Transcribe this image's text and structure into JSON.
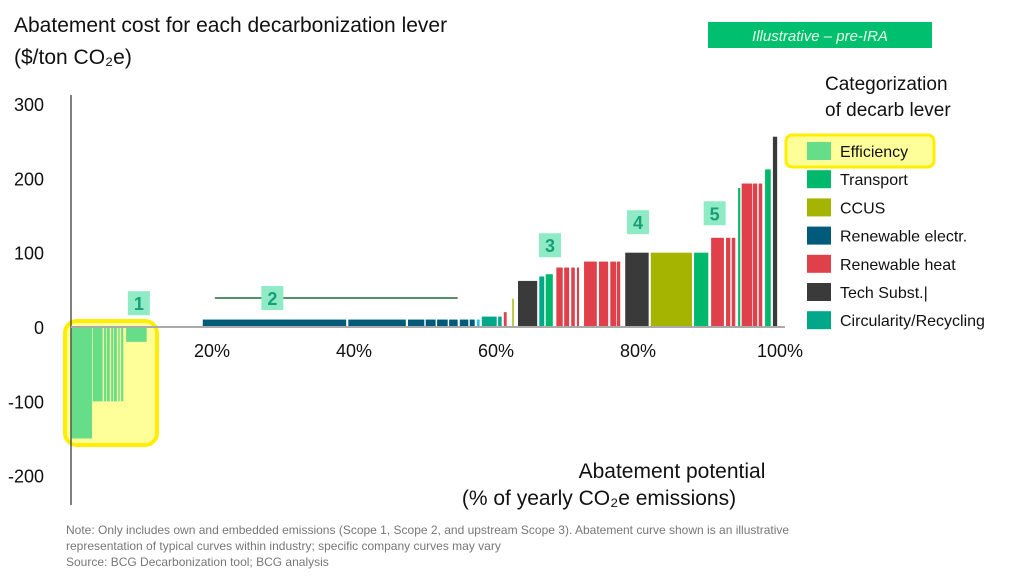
{
  "badge": "Illustrative – pre-IRA",
  "notes": {
    "line1": "Note: Only includes own and embedded emissions (Scope 1, Scope 2, and upstream Scope 3). Abatement curve shown is an illustrative",
    "line2": "representation of typical curves within industry; specific company curves may vary",
    "line3": "Source: BCG Decarbonization tool; BCG analysis"
  },
  "chart_data": {
    "type": "bar",
    "subtype": "marginal-abatement-cost-curve",
    "title": "Abatement cost for each decarbonization lever",
    "ylabel": "($/ton CO₂e)",
    "xlabel_line1": "Abatement potential",
    "xlabel_line2": "(% of yearly CO₂e emissions)",
    "xlim": [
      0,
      100
    ],
    "ylim": [
      -200,
      300
    ],
    "yticks": [
      "300",
      "200",
      "100",
      "0",
      "-100",
      "-200"
    ],
    "ytick_values": [
      300,
      200,
      100,
      0,
      -100,
      -200
    ],
    "xticks": [
      "20%",
      "40%",
      "60%",
      "80%",
      "100%"
    ],
    "xtick_values": [
      20,
      40,
      60,
      80,
      100
    ],
    "grid": false,
    "legend": {
      "title_line1": "Categorization",
      "title_line2": "of decarb lever",
      "placement": "right",
      "highlighted": "Efficiency",
      "items": [
        {
          "name": "Efficiency",
          "color": "#66dd88"
        },
        {
          "name": "Transport",
          "color": "#00b86b"
        },
        {
          "name": "CCUS",
          "color": "#a5b400"
        },
        {
          "name": "Renewable electr.",
          "color": "#005a7a"
        },
        {
          "name": "Renewable heat",
          "color": "#e0404a"
        },
        {
          "name": "Tech Subst.|",
          "color": "#3a3a3a"
        },
        {
          "name": "Circularity/Recycling",
          "color": "#00a88a"
        }
      ]
    },
    "bars": [
      {
        "x0": 0.1,
        "x1": 3.1,
        "value": -150,
        "category": "Efficiency"
      },
      {
        "x0": 3.2,
        "x1": 4.6,
        "value": -100,
        "category": "Efficiency"
      },
      {
        "x0": 4.8,
        "x1": 5.1,
        "value": -100,
        "category": "Efficiency"
      },
      {
        "x0": 5.2,
        "x1": 5.6,
        "value": -100,
        "category": "Efficiency"
      },
      {
        "x0": 5.8,
        "x1": 6.1,
        "value": -100,
        "category": "Efficiency"
      },
      {
        "x0": 6.2,
        "x1": 6.6,
        "value": -100,
        "category": "Efficiency"
      },
      {
        "x0": 6.8,
        "x1": 7.0,
        "value": -100,
        "category": "Efficiency"
      },
      {
        "x0": 7.2,
        "x1": 7.5,
        "value": -100,
        "category": "Efficiency"
      },
      {
        "x0": 7.9,
        "x1": 10.8,
        "value": -20,
        "category": "Efficiency"
      },
      {
        "x0": 18.7,
        "x1": 38.9,
        "value": 10,
        "category": "Renewable electr."
      },
      {
        "x0": 39.2,
        "x1": 47.3,
        "value": 10,
        "category": "Renewable electr."
      },
      {
        "x0": 47.6,
        "x1": 49.9,
        "value": 10,
        "category": "Renewable electr."
      },
      {
        "x0": 50.1,
        "x1": 51.5,
        "value": 10,
        "category": "Renewable electr."
      },
      {
        "x0": 51.7,
        "x1": 53.2,
        "value": 10,
        "category": "Renewable electr."
      },
      {
        "x0": 53.4,
        "x1": 54.6,
        "value": 10,
        "category": "Renewable electr."
      },
      {
        "x0": 54.9,
        "x1": 56.1,
        "value": 10,
        "category": "Renewable electr."
      },
      {
        "x0": 56.3,
        "x1": 57.0,
        "value": 10,
        "category": "Renewable electr."
      },
      {
        "x0": 57.3,
        "x1": 57.7,
        "value": 10,
        "category": "Circularity/Recycling",
        "color": "#2ec4e6"
      },
      {
        "x0": 58.0,
        "x1": 60.1,
        "value": 14,
        "category": "Circularity/Recycling"
      },
      {
        "x0": 60.3,
        "x1": 60.8,
        "value": 14,
        "category": "Circularity/Recycling"
      },
      {
        "x0": 61.1,
        "x1": 61.5,
        "value": 20,
        "category": "Renewable heat"
      },
      {
        "x0": 62.3,
        "x1": 62.5,
        "value": 38,
        "category": "CCUS"
      },
      {
        "x0": 63.1,
        "x1": 65.8,
        "value": 62,
        "category": "Tech Subst.|"
      },
      {
        "x0": 66.1,
        "x1": 66.8,
        "value": 68,
        "category": "Circularity/Recycling"
      },
      {
        "x0": 67.0,
        "x1": 68.0,
        "value": 71,
        "category": "Transport"
      },
      {
        "x0": 68.5,
        "x1": 69.4,
        "value": 80,
        "category": "Renewable heat"
      },
      {
        "x0": 69.6,
        "x1": 70.3,
        "value": 80,
        "category": "Renewable heat"
      },
      {
        "x0": 70.6,
        "x1": 71.1,
        "value": 80,
        "category": "Renewable heat"
      },
      {
        "x0": 71.4,
        "x1": 71.7,
        "value": 80,
        "category": "Renewable heat"
      },
      {
        "x0": 72.4,
        "x1": 74.2,
        "value": 88,
        "category": "Renewable heat"
      },
      {
        "x0": 74.5,
        "x1": 75.8,
        "value": 88,
        "category": "Renewable heat"
      },
      {
        "x0": 76.1,
        "x1": 76.9,
        "value": 88,
        "category": "Renewable heat"
      },
      {
        "x0": 77.0,
        "x1": 77.5,
        "value": 88,
        "category": "Renewable heat"
      },
      {
        "x0": 78.2,
        "x1": 81.5,
        "value": 100,
        "category": "Tech Subst.|"
      },
      {
        "x0": 81.8,
        "x1": 87.6,
        "value": 100,
        "category": "CCUS"
      },
      {
        "x0": 87.9,
        "x1": 89.9,
        "value": 100,
        "category": "Transport"
      },
      {
        "x0": 90.3,
        "x1": 92.1,
        "value": 120,
        "category": "Renewable heat"
      },
      {
        "x0": 92.4,
        "x1": 93.0,
        "value": 120,
        "category": "Renewable heat"
      },
      {
        "x0": 93.2,
        "x1": 93.7,
        "value": 120,
        "category": "Renewable heat"
      },
      {
        "x0": 94.1,
        "x1": 94.4,
        "value": 187,
        "category": "Transport"
      },
      {
        "x0": 94.6,
        "x1": 96.1,
        "value": 193,
        "category": "Renewable heat"
      },
      {
        "x0": 96.2,
        "x1": 96.8,
        "value": 193,
        "category": "Renewable heat"
      },
      {
        "x0": 97.0,
        "x1": 97.5,
        "value": 193,
        "category": "Renewable heat"
      },
      {
        "x0": 97.9,
        "x1": 98.7,
        "value": 212,
        "category": "Transport"
      },
      {
        "x0": 99.0,
        "x1": 99.6,
        "value": 256,
        "category": "Tech Subst.|"
      }
    ],
    "annotations": [
      {
        "label": "1",
        "x": 9.7,
        "y": 32
      },
      {
        "label": "2",
        "x": 28.5,
        "y": 39,
        "line_from": 20.4,
        "line_to": 54.6
      },
      {
        "label": "3",
        "x": 67.6,
        "y": 110
      },
      {
        "label": "4",
        "x": 80.0,
        "y": 141
      },
      {
        "label": "5",
        "x": 90.8,
        "y": 153
      }
    ],
    "highlight_category": "Efficiency",
    "colors": {
      "highlight_fill": "#ffff99",
      "highlight_border": "#ffee00",
      "annotation_fill": "#8eebc6",
      "annotation_text": "#1a9e78",
      "badge": "#00bf6f"
    }
  }
}
